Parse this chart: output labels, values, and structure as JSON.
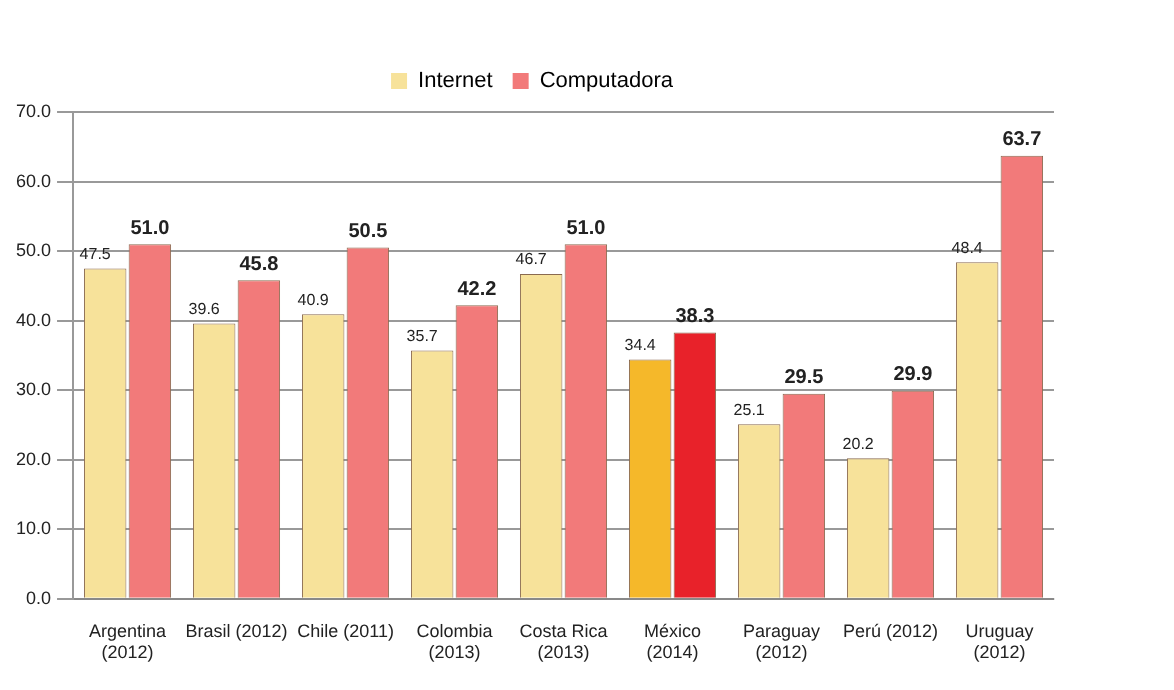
{
  "chart_data": {
    "type": "bar",
    "categories": [
      "Argentina\n(2012)",
      "Brasil (2012)",
      "Chile (2011)",
      "Colombia\n(2013)",
      "Costa Rica\n(2013)",
      "México\n(2014)",
      "Paraguay\n(2012)",
      "Perú (2012)",
      "Uruguay\n(2012)"
    ],
    "series": [
      {
        "name": "Internet",
        "color": "#f7e29a",
        "colors": [
          "#f7e29a",
          "#f7e29a",
          "#f7e29a",
          "#f7e29a",
          "#f7e29a",
          "#f5b82a",
          "#f7e29a",
          "#f7e29a",
          "#f7e29a"
        ],
        "values": [
          47.5,
          39.6,
          40.9,
          35.7,
          46.7,
          34.4,
          25.1,
          20.2,
          48.4
        ],
        "value_labels": [
          "47.5",
          "39.6",
          "40.9",
          "35.7",
          "46.7",
          "34.4",
          "25.1",
          "20.2",
          "48.4"
        ]
      },
      {
        "name": "Computadora",
        "color": "#f27a7a",
        "colors": [
          "#f27a7a",
          "#f27a7a",
          "#f27a7a",
          "#f27a7a",
          "#f27a7a",
          "#e8222a",
          "#f27a7a",
          "#f27a7a",
          "#f27a7a"
        ],
        "values": [
          51.0,
          45.8,
          50.5,
          42.2,
          51.0,
          38.3,
          29.5,
          29.9,
          63.7
        ],
        "value_labels": [
          "51.0",
          "45.8",
          "50.5",
          "42.2",
          "51.0",
          "38.3",
          "29.5",
          "29.9",
          "63.7"
        ]
      }
    ],
    "ylim": [
      0,
      70
    ],
    "yticks": [
      {
        "value": 0,
        "label": "0.0"
      },
      {
        "value": 10,
        "label": "10.0"
      },
      {
        "value": 20,
        "label": "20.0"
      },
      {
        "value": 30,
        "label": "30.0"
      },
      {
        "value": 40,
        "label": "40.0"
      },
      {
        "value": 50,
        "label": "50.0"
      },
      {
        "value": 60,
        "label": "60.0"
      },
      {
        "value": 70,
        "label": "70.0"
      }
    ],
    "grid": "y",
    "legend": "top"
  }
}
